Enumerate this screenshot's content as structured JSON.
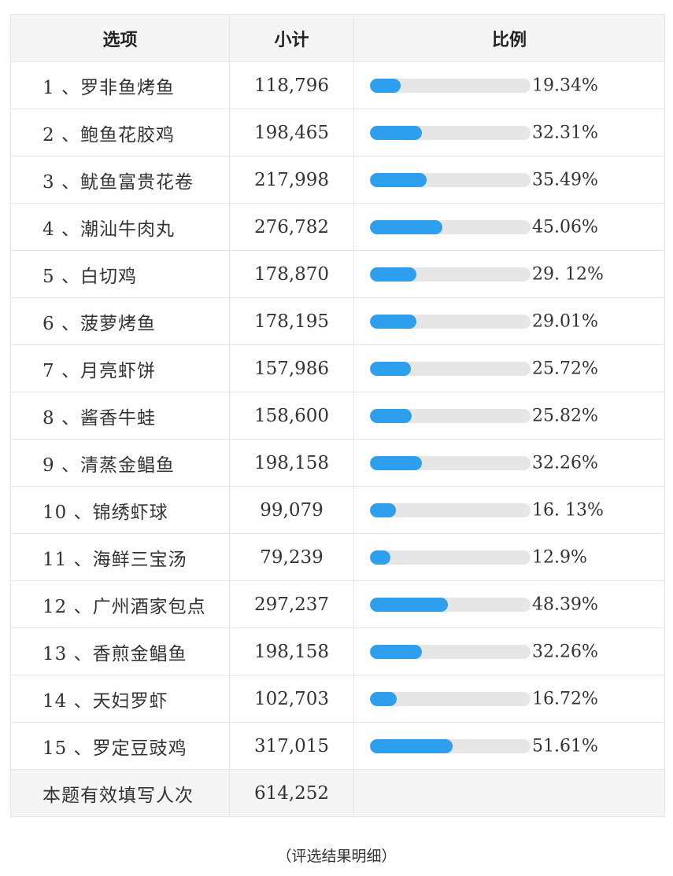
{
  "table": {
    "headers": {
      "option": "选项",
      "subtotal": "小计",
      "ratio": "比例"
    },
    "rows": [
      {
        "option": "1 、罗非鱼烤鱼",
        "subtotal": "118,796",
        "ratio_text": "19.34%",
        "ratio": 19.34
      },
      {
        "option": "2 、鲍鱼花胶鸡",
        "subtotal": "198,465",
        "ratio_text": "32.31%",
        "ratio": 32.31
      },
      {
        "option": "3 、鱿鱼富贵花卷",
        "subtotal": "217,998",
        "ratio_text": "35.49%",
        "ratio": 35.49
      },
      {
        "option": "4 、潮汕牛肉丸",
        "subtotal": "276,782",
        "ratio_text": "45.06%",
        "ratio": 45.06
      },
      {
        "option": "5 、白切鸡",
        "subtotal": "178,870",
        "ratio_text": "29. 12%",
        "ratio": 29.12
      },
      {
        "option": "6 、菠萝烤鱼",
        "subtotal": "178,195",
        "ratio_text": "29.01%",
        "ratio": 29.01
      },
      {
        "option": "7 、月亮虾饼",
        "subtotal": "157,986",
        "ratio_text": "25.72%",
        "ratio": 25.72
      },
      {
        "option": "8 、酱香牛蛙",
        "subtotal": "158,600",
        "ratio_text": "25.82%",
        "ratio": 25.82
      },
      {
        "option": "9 、清蒸金鲳鱼",
        "subtotal": "198,158",
        "ratio_text": "32.26%",
        "ratio": 32.26
      },
      {
        "option": "10 、锦绣虾球",
        "subtotal": "99,079",
        "ratio_text": "16. 13%",
        "ratio": 16.13
      },
      {
        "option": "11 、海鲜三宝汤",
        "subtotal": "79,239",
        "ratio_text": "12.9%",
        "ratio": 12.9
      },
      {
        "option": "12 、广州酒家包点",
        "subtotal": "297,237",
        "ratio_text": "48.39%",
        "ratio": 48.39
      },
      {
        "option": "13 、香煎金鲳鱼",
        "subtotal": "198,158",
        "ratio_text": "32.26%",
        "ratio": 32.26
      },
      {
        "option": "14 、天妇罗虾",
        "subtotal": "102,703",
        "ratio_text": "16.72%",
        "ratio": 16.72
      },
      {
        "option": "15 、罗定豆豉鸡",
        "subtotal": "317,015",
        "ratio_text": "51.61%",
        "ratio": 51.61
      }
    ],
    "summary": {
      "label": "本题有效填写人次",
      "value": "614,252"
    }
  },
  "caption": "（评选结果明细）",
  "colors": {
    "bar_fill": "#2d9fec",
    "bar_track": "#e6e6e6",
    "header_bg": "#f5f5f5",
    "border": "#e6e6e6"
  }
}
